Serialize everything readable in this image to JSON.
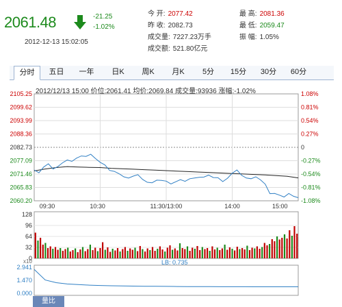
{
  "quote": {
    "price": "2061.48",
    "change": "-21.25",
    "change_pct": "-1.02%",
    "datetime": "2012-12-13 15:02:05",
    "open_label": "今  开:",
    "open": "2077.42",
    "high_label": "最  高:",
    "high": "2081.36",
    "prev_label": "昨  收:",
    "prev": "2082.73",
    "low_label": "最  低:",
    "low": "2059.47",
    "vol_label": "成交量:",
    "vol": "7227.23万手",
    "amp_label": "振  幅:",
    "amp": "1.05%",
    "amt_label": "成交额:",
    "amt": "521.80亿元"
  },
  "tabs": [
    "分时",
    "五日",
    "一年",
    "日K",
    "周K",
    "月K",
    "5分",
    "15分",
    "30分",
    "60分"
  ],
  "info": {
    "date": "2012/12/13 15:00",
    "price_label": "价位:",
    "price": "2061.41",
    "avg_label": "均价:",
    "avg": "2069.84",
    "vol_label": "成交量:",
    "vol": "93936",
    "pct_label": "涨幅:",
    "pct": "-1.02%"
  },
  "axes": {
    "left_ticks": [
      "2105.25",
      "2099.62",
      "2093.99",
      "2088.36",
      "2082.73",
      "2077.09",
      "2071.46",
      "2065.83",
      "2060.20"
    ],
    "right_ticks": [
      "1.08%",
      "0.81%",
      "0.54%",
      "0.27%",
      "0",
      "-0.27%",
      "-0.54%",
      "-0.81%",
      "-1.08%"
    ],
    "time_ticks": [
      "09:30",
      "10:30",
      "11:30/13:00",
      "14:00",
      "15:00"
    ],
    "vol_ticks": [
      "128",
      "96",
      "64",
      "32",
      "0"
    ],
    "vol_unit": "x10",
    "lb_ticks": [
      "2.941",
      "1.470",
      "0.000"
    ],
    "lb_label": "LB: 0.735"
  },
  "volume_tab": "量比",
  "colors": {
    "up": "#c00000",
    "down": "#1c8a1c",
    "price_line": "#2f7fc4",
    "avg_line": "#222222",
    "lb_line": "#2f7fc4"
  },
  "chart_data": {
    "type": "line",
    "x_range": [
      "09:30",
      "15:00"
    ],
    "ylim": [
      2060.2,
      2105.25
    ],
    "series": [
      {
        "name": "价位",
        "values": [
          2073.2,
          2072.0,
          2074.4,
          2075.8,
          2073.6,
          2074.6,
          2076.2,
          2077.4,
          2076.8,
          2078.2,
          2079.1,
          2078.9,
          2079.8,
          2078.0,
          2076.4,
          2075.3,
          2073.0,
          2072.6,
          2071.6,
          2070.3,
          2069.8,
          2070.6,
          2071.2,
          2069.2,
          2068.0,
          2067.8,
          2068.9,
          2068.8,
          2068.5,
          2067.3,
          2068.2,
          2069.1,
          2068.4,
          2069.5,
          2069.8,
          2070.1,
          2070.2,
          2071.0,
          2070.0,
          2069.9,
          2068.3,
          2069.7,
          2071.8,
          2073.2,
          2070.9,
          2069.8,
          2069.5,
          2070.3,
          2069.0,
          2067.2,
          2063.2,
          2063.3,
          2062.6,
          2061.8,
          2063.3,
          2062.1,
          2061.5
        ]
      },
      {
        "name": "均价",
        "values": [
          2072.8,
          2073.6,
          2074.2,
          2074.6,
          2074.4,
          2074.3,
          2074.2,
          2073.9,
          2073.7,
          2073.5,
          2073.3,
          2073.1,
          2072.9,
          2072.7,
          2072.5,
          2072.3,
          2072.1,
          2071.9,
          2071.7,
          2071.5,
          2071.3,
          2071.1,
          2070.8,
          2070.5,
          2069.84
        ]
      }
    ],
    "volume": {
      "ylim": [
        0,
        128
      ],
      "values": [
        75,
        52,
        60,
        40,
        45,
        30,
        35,
        28,
        33,
        25,
        30,
        22,
        27,
        31,
        20,
        24,
        29,
        18,
        26,
        33,
        21,
        27,
        40,
        24,
        31,
        21,
        30,
        47,
        25,
        32,
        19,
        28,
        23,
        30,
        20,
        27,
        33,
        22,
        29,
        25,
        31,
        21,
        36,
        27,
        20,
        29,
        24,
        33,
        22,
        28,
        35,
        26,
        20,
        31,
        38,
        25,
        29,
        23,
        44,
        30,
        27,
        35,
        22,
        31,
        28,
        36,
        24,
        33,
        27,
        30,
        22,
        35,
        26,
        31,
        24,
        29,
        40,
        25,
        32,
        28,
        23,
        34,
        27,
        30,
        26,
        37,
        24,
        31,
        29,
        35,
        28,
        33,
        45,
        38,
        42,
        56,
        50,
        64,
        55,
        60,
        70,
        58,
        82,
        66,
        94,
        72
      ]
    },
    "volume_ratio": {
      "ylim": [
        0,
        2.941
      ],
      "values": [
        2.7,
        1.5,
        1.2,
        1.05,
        0.98,
        0.92,
        0.88,
        0.85,
        0.83,
        0.81,
        0.8,
        0.79,
        0.78,
        0.77,
        0.76,
        0.75,
        0.75,
        0.745,
        0.74,
        0.74,
        0.738,
        0.737,
        0.736,
        0.735,
        0.735
      ]
    }
  }
}
